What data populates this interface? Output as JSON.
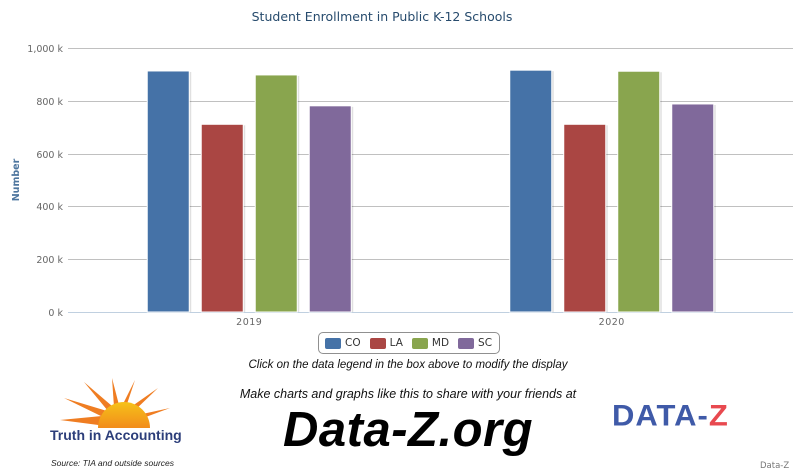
{
  "chart_data": {
    "type": "bar",
    "title": "Student Enrollment in Public K-12 Schools",
    "ylabel": "Number",
    "xlabel": "",
    "categories": [
      "2019",
      "2020"
    ],
    "ylim": [
      0,
      1000000
    ],
    "yticks": [
      0,
      200000,
      400000,
      600000,
      800000,
      1000000
    ],
    "ytick_labels": [
      "0 k",
      "200 k",
      "400 k",
      "600 k",
      "800 k",
      "1,000 k"
    ],
    "grid": true,
    "legend_position": "bottom-center",
    "series": [
      {
        "name": "CO",
        "color": "#4572A7",
        "values": [
          913000,
          916000
        ]
      },
      {
        "name": "LA",
        "color": "#AA4643",
        "values": [
          711000,
          711000
        ]
      },
      {
        "name": "MD",
        "color": "#89A54E",
        "values": [
          898000,
          912000
        ]
      },
      {
        "name": "SC",
        "color": "#80699B",
        "values": [
          781000,
          788000
        ]
      }
    ]
  },
  "hints": {
    "legend_hint": "Click on the data legend in the box above to modify the display",
    "share_hint": "Make charts and graphs like this to share with your friends at",
    "site": "Data-Z.org"
  },
  "branding": {
    "tia_name": "Truth in Accounting",
    "source": "Source: TIA and outside sources",
    "dataz_logo_left": "DATA-",
    "dataz_logo_right": "Z",
    "credit": "Data-Z"
  }
}
